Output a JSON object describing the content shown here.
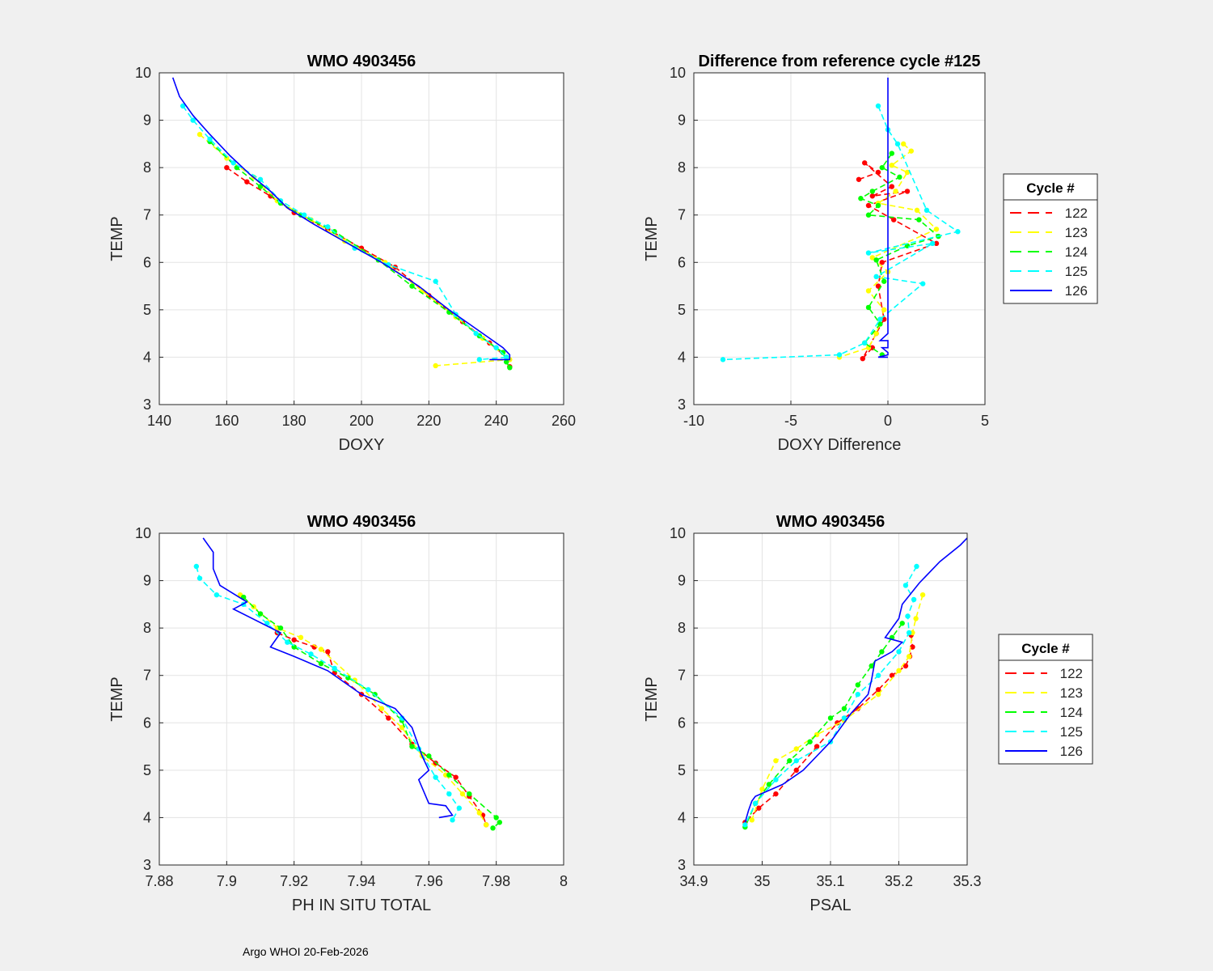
{
  "footer": "Argo WHOI 20-Feb-2026",
  "legend": {
    "title": "Cycle #",
    "entries": [
      {
        "label": "122",
        "color": "#ff0000",
        "style": "dashed"
      },
      {
        "label": "123",
        "color": "#ffff00",
        "style": "dashed"
      },
      {
        "label": "124",
        "color": "#00ff00",
        "style": "dashed"
      },
      {
        "label": "125",
        "color": "#00ffff",
        "style": "dashed"
      },
      {
        "label": "126",
        "color": "#0000ff",
        "style": "solid"
      }
    ]
  },
  "chart_data": [
    {
      "type": "line",
      "title": "WMO 4903456",
      "xlabel": "DOXY",
      "ylabel": "TEMP",
      "xlim": [
        140,
        260
      ],
      "ylim": [
        3,
        10
      ],
      "xticks": [
        140,
        160,
        180,
        200,
        220,
        240,
        260
      ],
      "xtick_labels": [
        "140",
        "160",
        "180",
        "200",
        "220",
        "240",
        "260"
      ],
      "yticks": [
        3,
        4,
        5,
        6,
        7,
        8,
        9,
        10
      ],
      "ytick_labels": [
        "3",
        "4",
        "5",
        "6",
        "7",
        "8",
        "9",
        "10"
      ],
      "legend": false,
      "series": [
        {
          "name": "122",
          "x": [
            160,
            166,
            173,
            180,
            190,
            200,
            210,
            220,
            230,
            238,
            243,
            244
          ],
          "y": [
            8.0,
            7.7,
            7.4,
            7.05,
            6.7,
            6.3,
            5.9,
            5.3,
            4.75,
            4.3,
            4.0,
            3.8
          ]
        },
        {
          "name": "123",
          "x": [
            152,
            160,
            168,
            175,
            185,
            195,
            207,
            218,
            228,
            236,
            243,
            244,
            222
          ],
          "y": [
            8.7,
            8.2,
            7.8,
            7.3,
            6.9,
            6.45,
            6.0,
            5.4,
            4.85,
            4.4,
            4.0,
            3.95,
            3.82
          ]
        },
        {
          "name": "124",
          "x": [
            155,
            163,
            170,
            176,
            182,
            192,
            205,
            215,
            226,
            235,
            242,
            243,
            244
          ],
          "y": [
            8.55,
            8.0,
            7.6,
            7.25,
            7.0,
            6.65,
            6.05,
            5.5,
            4.95,
            4.45,
            4.1,
            3.9,
            3.78
          ]
        },
        {
          "name": "125",
          "x": [
            147,
            150,
            155,
            162,
            170,
            176,
            183,
            190,
            198,
            208,
            222,
            228,
            234,
            240,
            243,
            235
          ],
          "y": [
            9.3,
            9.0,
            8.6,
            8.1,
            7.75,
            7.3,
            7.0,
            6.75,
            6.3,
            5.95,
            5.6,
            4.9,
            4.5,
            4.2,
            4.0,
            3.95
          ]
        },
        {
          "name": "126",
          "x": [
            144,
            146,
            150,
            155,
            161,
            167,
            173,
            178,
            186,
            196,
            206,
            217,
            226,
            236,
            242,
            244,
            244,
            238
          ],
          "y": [
            9.9,
            9.5,
            9.1,
            8.7,
            8.25,
            7.85,
            7.5,
            7.15,
            6.8,
            6.4,
            6.0,
            5.5,
            5.0,
            4.5,
            4.2,
            4.05,
            3.95,
            3.95
          ]
        }
      ]
    },
    {
      "type": "line",
      "title": "Difference from reference cycle #125",
      "xlabel": "DOXY Difference",
      "ylabel": "TEMP",
      "xlim": [
        -10,
        5
      ],
      "ylim": [
        3,
        10
      ],
      "xticks": [
        -10,
        -5,
        0,
        5
      ],
      "xtick_labels": [
        "-10",
        "-5",
        "0",
        "5"
      ],
      "yticks": [
        3,
        4,
        5,
        6,
        7,
        8,
        9,
        10
      ],
      "ytick_labels": [
        "3",
        "4",
        "5",
        "6",
        "7",
        "8",
        "9",
        "10"
      ],
      "legend": true,
      "series": [
        {
          "name": "122",
          "x": [
            -1.5,
            -0.5,
            -1.2,
            0.2,
            -0.8,
            1.0,
            -1.0,
            0.3,
            2.5,
            -0.3,
            -0.5,
            -0.2,
            -0.6,
            -1.3,
            -0.8
          ],
          "y": [
            7.75,
            7.9,
            8.1,
            7.6,
            7.4,
            7.5,
            7.2,
            6.9,
            6.4,
            6.0,
            5.5,
            4.8,
            4.5,
            3.97,
            4.2
          ]
        },
        {
          "name": "123",
          "x": [
            0.8,
            1.2,
            0.2,
            1.0,
            0.4,
            -0.5,
            1.5,
            2.5,
            -0.8,
            0.0,
            -1.0,
            -0.2,
            -0.6,
            -1.0,
            -2.5
          ],
          "y": [
            8.5,
            8.35,
            8.05,
            7.9,
            7.5,
            7.25,
            7.1,
            6.7,
            6.1,
            5.8,
            5.4,
            5.0,
            4.5,
            4.2,
            4.0
          ]
        },
        {
          "name": "124",
          "x": [
            0.2,
            -0.3,
            0.6,
            -0.8,
            -1.4,
            -0.5,
            -1.0,
            1.6,
            2.6,
            1.0,
            -0.6,
            -0.2,
            -1.0,
            -0.4,
            -1.2,
            -0.3
          ],
          "y": [
            8.3,
            8.0,
            7.8,
            7.5,
            7.35,
            7.2,
            7.0,
            6.9,
            6.55,
            6.35,
            6.05,
            5.6,
            5.05,
            4.7,
            4.3,
            4.05
          ]
        },
        {
          "name": "125",
          "x": [
            -0.5,
            0.0,
            0.5,
            2.0,
            3.6,
            -1.0,
            2.3,
            -0.6,
            1.8,
            -0.4,
            -1.2,
            -2.5,
            -8.5
          ],
          "y": [
            9.3,
            8.8,
            8.5,
            7.1,
            6.65,
            6.2,
            6.4,
            5.7,
            5.55,
            4.8,
            4.3,
            4.05,
            3.95
          ]
        },
        {
          "name": "126",
          "x": [
            0,
            0,
            0,
            -0.4,
            0,
            0,
            -0.3,
            0,
            0,
            -0.5,
            0
          ],
          "y": [
            9.9,
            8.0,
            4.5,
            4.35,
            4.35,
            4.2,
            4.2,
            4.1,
            4.05,
            4.0,
            4.0
          ]
        }
      ]
    },
    {
      "type": "line",
      "title": "WMO 4903456",
      "xlabel": "PH IN SITU TOTAL",
      "ylabel": "TEMP",
      "xlim": [
        7.88,
        8.0
      ],
      "ylim": [
        3,
        10
      ],
      "xticks": [
        7.88,
        7.9,
        7.92,
        7.94,
        7.96,
        7.98,
        8.0
      ],
      "xtick_labels": [
        "7.88",
        "7.9",
        "7.92",
        "7.94",
        "7.96",
        "7.98",
        "8"
      ],
      "yticks": [
        3,
        4,
        5,
        6,
        7,
        8,
        9,
        10
      ],
      "ytick_labels": [
        "3",
        "4",
        "5",
        "6",
        "7",
        "8",
        "9",
        "10"
      ],
      "legend": false,
      "series": [
        {
          "name": "122",
          "x": [
            7.915,
            7.92,
            7.926,
            7.93,
            7.932,
            7.94,
            7.948,
            7.955,
            7.962,
            7.968,
            7.972,
            7.976,
            7.977
          ],
          "y": [
            7.9,
            7.75,
            7.6,
            7.5,
            7.05,
            6.6,
            6.1,
            5.55,
            5.15,
            4.85,
            4.45,
            4.05,
            3.85
          ]
        },
        {
          "name": "123",
          "x": [
            7.904,
            7.908,
            7.915,
            7.922,
            7.928,
            7.938,
            7.946,
            7.952,
            7.958,
            7.965,
            7.97,
            7.975,
            7.977
          ],
          "y": [
            8.7,
            8.45,
            8.0,
            7.8,
            7.55,
            6.9,
            6.3,
            5.9,
            5.3,
            4.9,
            4.5,
            4.1,
            3.85
          ]
        },
        {
          "name": "124",
          "x": [
            7.905,
            7.91,
            7.916,
            7.92,
            7.928,
            7.936,
            7.944,
            7.952,
            7.955,
            7.96,
            7.966,
            7.972,
            7.98,
            7.981,
            7.979
          ],
          "y": [
            8.65,
            8.3,
            8.0,
            7.6,
            7.25,
            6.95,
            6.6,
            6.05,
            5.5,
            5.3,
            4.9,
            4.5,
            4.0,
            3.9,
            3.78
          ]
        },
        {
          "name": "125",
          "x": [
            7.891,
            7.892,
            7.897,
            7.905,
            7.912,
            7.918,
            7.925,
            7.932,
            7.942,
            7.952,
            7.957,
            7.962,
            7.966,
            7.969,
            7.967
          ],
          "y": [
            9.3,
            9.05,
            8.7,
            8.5,
            8.1,
            7.7,
            7.45,
            7.15,
            6.7,
            6.1,
            5.45,
            4.85,
            4.5,
            4.2,
            3.95
          ]
        },
        {
          "name": "126",
          "x": [
            7.893,
            7.896,
            7.896,
            7.898,
            7.906,
            7.902,
            7.916,
            7.913,
            7.92,
            7.93,
            7.94,
            7.95,
            7.955,
            7.958,
            7.96,
            7.957,
            7.96,
            7.965,
            7.967,
            7.963
          ],
          "y": [
            9.9,
            9.6,
            9.25,
            8.9,
            8.55,
            8.4,
            7.9,
            7.6,
            7.4,
            7.1,
            6.6,
            6.3,
            5.9,
            5.3,
            5.0,
            4.8,
            4.3,
            4.25,
            4.05,
            4.0
          ]
        }
      ]
    },
    {
      "type": "line",
      "title": "WMO 4903456",
      "xlabel": "PSAL",
      "ylabel": "TEMP",
      "xlim": [
        34.9,
        35.3
      ],
      "ylim": [
        3,
        10
      ],
      "xticks": [
        34.9,
        35.0,
        35.1,
        35.2,
        35.3
      ],
      "xtick_labels": [
        "34.9",
        "35",
        "35.1",
        "35.2",
        "35.3"
      ],
      "yticks": [
        3,
        4,
        5,
        6,
        7,
        8,
        9,
        10
      ],
      "ytick_labels": [
        "3",
        "4",
        "5",
        "6",
        "7",
        "8",
        "9",
        "10"
      ],
      "legend": true,
      "series": [
        {
          "name": "122",
          "x": [
            35.218,
            35.22,
            35.216,
            35.21,
            35.19,
            35.17,
            35.14,
            35.11,
            35.08,
            35.05,
            35.02,
            34.995,
            34.975
          ],
          "y": [
            7.85,
            7.6,
            7.4,
            7.2,
            7.0,
            6.7,
            6.3,
            6.0,
            5.5,
            5.0,
            4.5,
            4.2,
            3.9
          ]
        },
        {
          "name": "123",
          "x": [
            35.235,
            35.225,
            35.22,
            35.215,
            35.2,
            35.17,
            35.12,
            35.08,
            35.05,
            35.02,
            35.0,
            34.985
          ],
          "y": [
            8.7,
            8.2,
            7.9,
            7.4,
            7.1,
            6.6,
            6.05,
            5.75,
            5.45,
            5.2,
            4.6,
            3.95
          ]
        },
        {
          "name": "124",
          "x": [
            35.205,
            35.19,
            35.175,
            35.16,
            35.14,
            35.12,
            35.1,
            35.07,
            35.04,
            35.01,
            34.99,
            34.975
          ],
          "y": [
            8.1,
            7.8,
            7.5,
            7.2,
            6.8,
            6.3,
            6.1,
            5.6,
            5.2,
            4.7,
            4.3,
            3.8
          ]
        },
        {
          "name": "125",
          "x": [
            35.226,
            35.21,
            35.222,
            35.213,
            35.215,
            35.2,
            35.17,
            35.14,
            35.12,
            35.1,
            35.05,
            35.02,
            34.99,
            34.975
          ],
          "y": [
            9.3,
            8.9,
            8.6,
            8.25,
            7.9,
            7.5,
            7.0,
            6.6,
            6.1,
            5.6,
            5.2,
            4.8,
            4.3,
            3.85
          ]
        },
        {
          "name": "126",
          "x": [
            35.3,
            35.29,
            35.26,
            35.23,
            35.205,
            35.2,
            35.18,
            35.205,
            35.19,
            35.165,
            35.16,
            35.155,
            35.13,
            35.1,
            35.06,
            35.03,
            34.99,
            34.985,
            34.98,
            34.975
          ],
          "y": [
            9.9,
            9.75,
            9.4,
            8.95,
            8.5,
            8.2,
            7.8,
            7.7,
            7.5,
            7.3,
            6.9,
            6.6,
            6.2,
            5.6,
            5.0,
            4.7,
            4.45,
            4.35,
            4.15,
            3.9
          ]
        }
      ]
    }
  ]
}
